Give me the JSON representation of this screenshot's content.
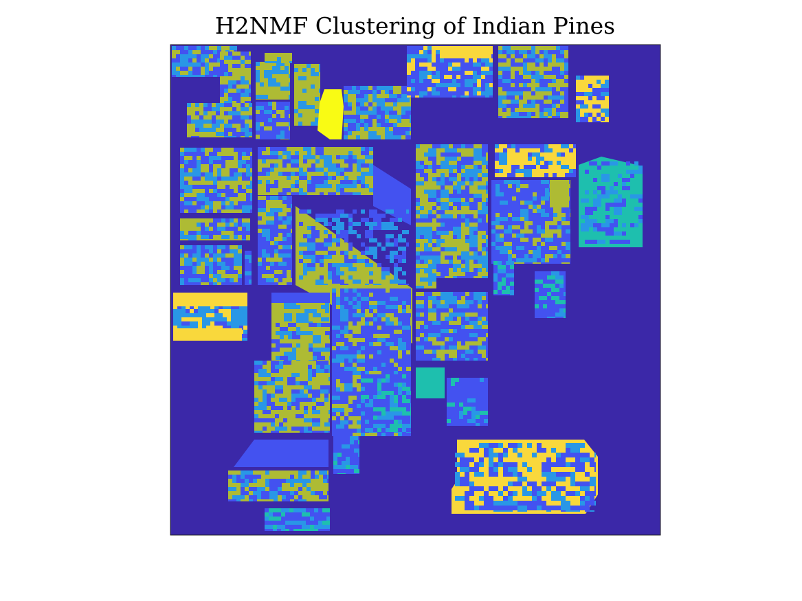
{
  "chart_data": {
    "type": "heatmap",
    "title": "H2NMF Clustering of Indian Pines",
    "xlabel": "",
    "ylabel": "",
    "grid": false,
    "axes_visible": false,
    "colorbar": false,
    "num_clusters": 6,
    "colormap": "parula",
    "cluster_colors": [
      "#3e26a8",
      "#4352f0",
      "#2997e6",
      "#1ebfae",
      "#aebb34",
      "#f9d83c"
    ],
    "highlight_color": "#f9fb14",
    "background_color": "#3b28a8"
  }
}
